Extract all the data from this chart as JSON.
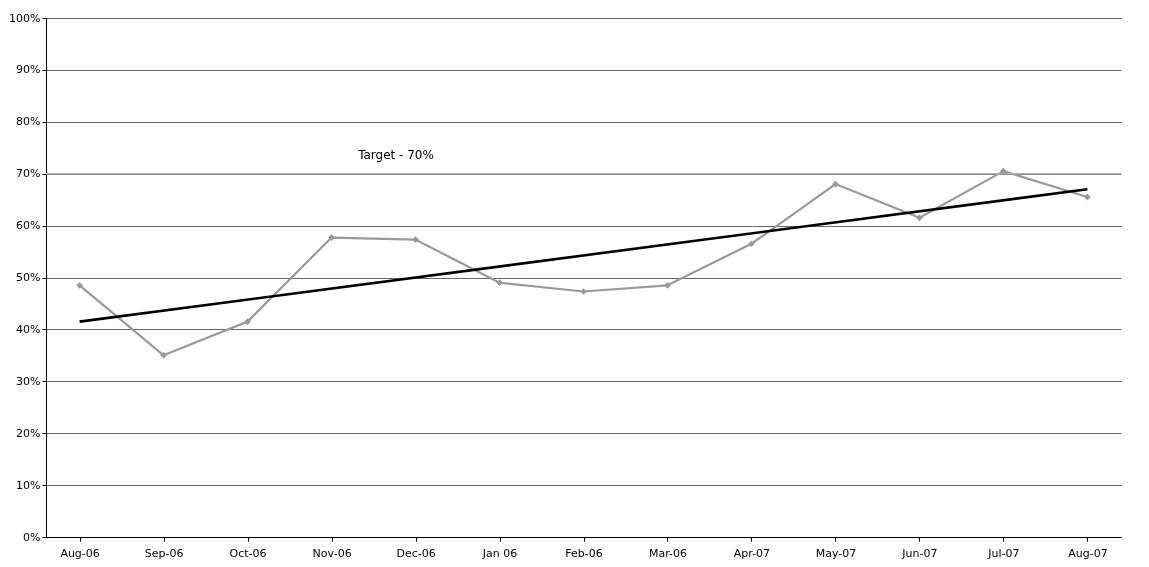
{
  "chart_data": {
    "type": "line",
    "categories": [
      "Aug-06",
      "Sep-06",
      "Oct-06",
      "Nov-06",
      "Dec-06",
      "Jan 06",
      "Feb-06",
      "Mar-06",
      "Apr-07",
      "May-07",
      "Jun-07",
      "Jul-07",
      "Aug-07"
    ],
    "series": [
      {
        "color": "#9a9a9a",
        "marker": "diamond",
        "values": [
          48.5,
          35,
          41.5,
          57.7,
          57.3,
          49,
          47.3,
          48.5,
          56.5,
          68,
          61.5,
          70.5,
          65.5
        ]
      },
      {
        "type": "line",
        "color": "#000000",
        "marker": "none",
        "x": [
          "Aug-06",
          "Aug-07"
        ],
        "values": [
          41.5,
          67
        ]
      }
    ],
    "ylim": [
      0,
      100
    ],
    "yticks": [
      {
        "value": 0,
        "label": "0%"
      },
      {
        "value": 10,
        "label": "10%"
      },
      {
        "value": 20,
        "label": "20%"
      },
      {
        "value": 30,
        "label": "30%"
      },
      {
        "value": 40,
        "label": "40%"
      },
      {
        "value": 50,
        "label": "50%"
      },
      {
        "value": 60,
        "label": "60%"
      },
      {
        "value": 70,
        "label": "70%"
      },
      {
        "value": 80,
        "label": "80%"
      },
      {
        "value": 90,
        "label": "90%"
      },
      {
        "value": 100,
        "label": "100%"
      }
    ],
    "grid": "y",
    "ref_lines": [
      {
        "axis": "y",
        "value": 70,
        "label": "Target - 70%",
        "color": "#b0b0b0"
      }
    ]
  }
}
